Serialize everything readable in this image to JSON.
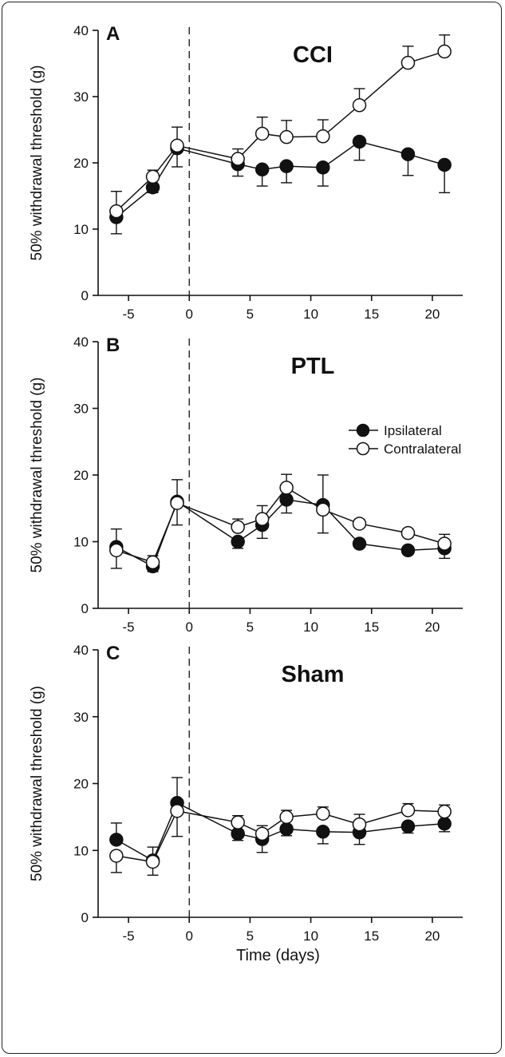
{
  "chart_data": [
    {
      "type": "line",
      "panel_letter": "A",
      "title": "CCI",
      "ylabel": "50% withdrawal threshold (g)",
      "xlabel": "",
      "xlim": [
        -7.5,
        22.5
      ],
      "ylim": [
        0,
        40
      ],
      "xticks": [
        -5,
        0,
        5,
        10,
        15,
        20
      ],
      "yticks": [
        0,
        10,
        20,
        30,
        40
      ],
      "injury_day": 0,
      "x": [
        -6,
        -3,
        -1,
        4,
        6,
        8,
        11,
        14,
        18,
        21
      ],
      "series": [
        {
          "key": "ipsi",
          "values": [
            11.8,
            16.3,
            22.2,
            19.8,
            19.0,
            19.5,
            19.3,
            23.2,
            21.3,
            19.7
          ],
          "errors": [
            2.5,
            0.8,
            2.8,
            1.8,
            2.5,
            2.5,
            2.8,
            2.8,
            3.2,
            4.2
          ]
        },
        {
          "key": "contra",
          "values": [
            12.7,
            17.9,
            22.6,
            20.6,
            24.4,
            23.9,
            24.0,
            28.7,
            35.1,
            36.8
          ],
          "errors": [
            3.0,
            1.0,
            2.8,
            1.5,
            2.5,
            2.5,
            2.5,
            2.5,
            2.5,
            2.5
          ]
        }
      ]
    },
    {
      "type": "line",
      "panel_letter": "B",
      "title": "PTL",
      "ylabel": "50% withdrawal threshold (g)",
      "xlabel": "",
      "xlim": [
        -7.5,
        22.5
      ],
      "ylim": [
        0,
        40
      ],
      "xticks": [
        -5,
        0,
        5,
        10,
        15,
        20
      ],
      "yticks": [
        0,
        10,
        20,
        30,
        40
      ],
      "injury_day": 0,
      "x": [
        -6,
        -3,
        -1,
        4,
        6,
        8,
        11,
        14,
        18,
        21
      ],
      "legend": {
        "position": "top-right",
        "entries": [
          {
            "key": "ipsi",
            "label": "Ipsilateral"
          },
          {
            "key": "contra",
            "label": "Contralateral"
          }
        ]
      },
      "series": [
        {
          "key": "ipsi",
          "values": [
            9.2,
            6.3,
            16.0,
            10.0,
            12.5,
            16.3,
            15.5,
            9.7,
            8.7,
            9.0
          ],
          "errors": [
            2.7,
            0.8,
            3.3,
            1.0,
            2.0,
            2.0,
            4.5,
            0.6,
            0.6,
            1.5
          ]
        },
        {
          "key": "contra",
          "values": [
            8.7,
            6.9,
            15.8,
            12.2,
            13.4,
            18.1,
            14.8,
            12.7,
            11.3,
            9.7
          ],
          "errors": [
            2.7,
            1.0,
            3.3,
            1.2,
            2.0,
            2.0,
            3.5,
            0.6,
            0.6,
            1.4
          ]
        }
      ]
    },
    {
      "type": "line",
      "panel_letter": "C",
      "title": "Sham",
      "ylabel": "50% withdrawal threshold (g)",
      "xlabel": "Time (days)",
      "xlim": [
        -7.5,
        22.5
      ],
      "ylim": [
        0,
        40
      ],
      "xticks": [
        -5,
        0,
        5,
        10,
        15,
        20
      ],
      "yticks": [
        0,
        10,
        20,
        30,
        40
      ],
      "injury_day": 0,
      "x": [
        -6,
        -3,
        -1,
        4,
        6,
        8,
        11,
        14,
        18,
        21
      ],
      "series": [
        {
          "key": "ipsi",
          "values": [
            11.6,
            8.5,
            17.1,
            12.5,
            11.7,
            13.2,
            12.8,
            12.7,
            13.6,
            14.0
          ],
          "errors": [
            2.5,
            2.0,
            3.8,
            1.0,
            2.0,
            1.0,
            1.8,
            1.8,
            1.0,
            1.2
          ]
        },
        {
          "key": "contra",
          "values": [
            9.2,
            8.3,
            15.9,
            14.2,
            12.5,
            15.0,
            15.5,
            13.9,
            16.0,
            15.8
          ],
          "errors": [
            2.5,
            2.0,
            3.8,
            1.0,
            1.2,
            1.0,
            1.0,
            1.5,
            1.0,
            1.0
          ]
        }
      ]
    }
  ]
}
